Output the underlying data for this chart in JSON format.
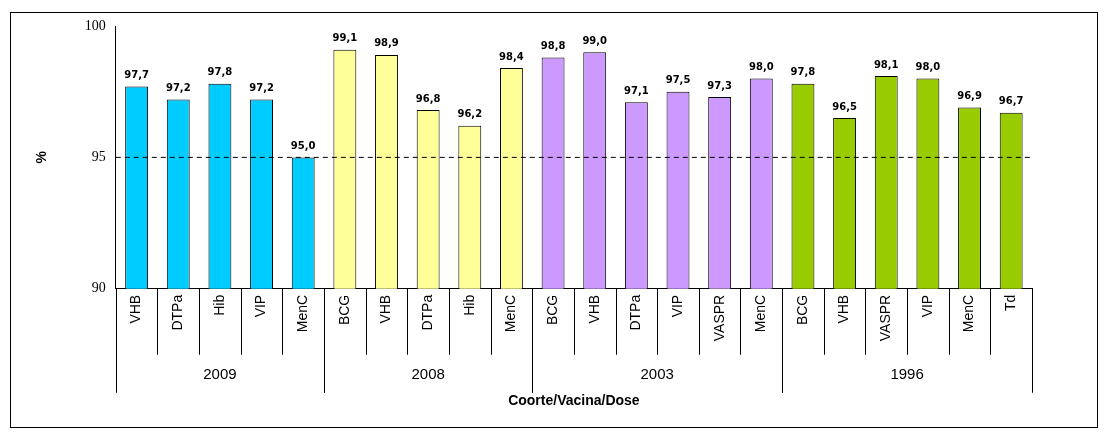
{
  "chart_data": {
    "type": "bar",
    "xlabel": "Coorte/Vacina/Dose",
    "ylabel": "%",
    "categories": [
      "VHB",
      "DTPa",
      "Hib",
      "VIP",
      "MenC",
      "BCG",
      "VHB",
      "DTPa",
      "Hib",
      "MenC",
      "BCG",
      "VHB",
      "DTPa",
      "VIP",
      "VASPR",
      "MenC",
      "BCG",
      "VHB",
      "VASPR",
      "VIP",
      "MenC",
      "Td"
    ],
    "series": [
      {
        "name": "2009",
        "color": "#00ccff",
        "values": [
          97.7,
          97.2,
          97.8,
          97.2,
          95.0,
          null,
          null,
          null,
          null,
          null,
          null,
          null,
          null,
          null,
          null,
          null,
          null,
          null,
          null,
          null,
          null,
          null
        ],
        "value_labels": [
          "97,7",
          "97,2",
          "97,8",
          "97,2",
          "95,0",
          null,
          null,
          null,
          null,
          null,
          null,
          null,
          null,
          null,
          null,
          null,
          null,
          null,
          null,
          null,
          null,
          null
        ]
      },
      {
        "name": "2008",
        "color": "#ffff99",
        "values": [
          null,
          null,
          null,
          null,
          null,
          99.1,
          98.9,
          96.8,
          96.2,
          98.4,
          null,
          null,
          null,
          null,
          null,
          null,
          null,
          null,
          null,
          null,
          null,
          null
        ],
        "value_labels": [
          null,
          null,
          null,
          null,
          null,
          "99,1",
          "98,9",
          "96,8",
          "96,2",
          "98,4",
          null,
          null,
          null,
          null,
          null,
          null,
          null,
          null,
          null,
          null,
          null,
          null
        ]
      },
      {
        "name": "2003",
        "color": "#cc99ff",
        "values": [
          null,
          null,
          null,
          null,
          null,
          null,
          null,
          null,
          null,
          null,
          98.8,
          99.0,
          97.1,
          97.5,
          97.3,
          98.0,
          null,
          null,
          null,
          null,
          null,
          null
        ],
        "value_labels": [
          null,
          null,
          null,
          null,
          null,
          null,
          null,
          null,
          null,
          null,
          "98,8",
          "99,0",
          "97,1",
          "97,5",
          "97,3",
          "98,0",
          null,
          null,
          null,
          null,
          null,
          null
        ]
      },
      {
        "name": "1996",
        "color": "#99cc00",
        "values": [
          null,
          null,
          null,
          null,
          null,
          null,
          null,
          null,
          null,
          null,
          null,
          null,
          null,
          null,
          null,
          null,
          97.8,
          96.5,
          98.1,
          98.0,
          96.9,
          96.7
        ],
        "value_labels": [
          null,
          null,
          null,
          null,
          null,
          null,
          null,
          null,
          null,
          null,
          null,
          null,
          null,
          null,
          null,
          null,
          "97,8",
          "96,5",
          "98,1",
          "98,0",
          "96,9",
          "96,7"
        ]
      }
    ],
    "ylim": [
      90,
      100
    ],
    "yticks": [
      90,
      95,
      100
    ],
    "grid": false,
    "legend": false,
    "ref_lines": [
      {
        "axis": "y",
        "value": 95,
        "color": "#000000",
        "line_style": "dashed"
      }
    ]
  }
}
